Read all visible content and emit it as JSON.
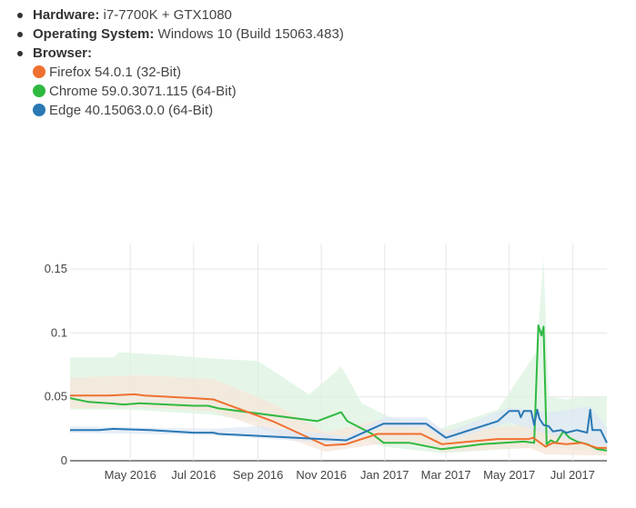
{
  "specs": {
    "hardware_label": "Hardware:",
    "hardware_value": "i7-7700K + GTX1080",
    "os_label": "Operating System:",
    "os_value": "Windows 10 (Build 15063.483)",
    "browser_label": "Browser:",
    "browsers": [
      {
        "name": "Firefox 54.0.1 (32-Bit)",
        "color": "#f07030"
      },
      {
        "name": "Chrome 59.0.3071.115 (64-Bit)",
        "color": "#2fb940"
      },
      {
        "name": "Edge 40.15063.0.0 (64-Bit)",
        "color": "#2a78b4"
      }
    ]
  },
  "chart_data": {
    "type": "line",
    "x_domain": [
      "2016-03-04",
      "2017-08-03"
    ],
    "ylim": [
      0,
      0.17
    ],
    "y_ticks": [
      0,
      0.05,
      0.1,
      0.15
    ],
    "y_tick_labels": [
      "0",
      "0.05",
      "0.1",
      "0.15"
    ],
    "x_ticks": [
      "2016-05-01",
      "2016-07-01",
      "2016-09-01",
      "2016-11-01",
      "2017-01-01",
      "2017-03-01",
      "2017-05-01",
      "2017-07-01"
    ],
    "x_tick_labels": [
      "May 2016",
      "Jul 2016",
      "Sep 2016",
      "Nov 2016",
      "Jan 2017",
      "Mar 2017",
      "May 2017",
      "Jul 2017"
    ],
    "grid": true,
    "series": [
      {
        "color": "#2fb940",
        "band_color": "#dcf3e0",
        "points": [
          [
            "2016-03-04",
            0.049
          ],
          [
            "2016-03-22",
            0.046
          ],
          [
            "2016-04-10",
            0.045
          ],
          [
            "2016-04-25",
            0.044
          ],
          [
            "2016-05-10",
            0.045
          ],
          [
            "2016-07-01",
            0.043
          ],
          [
            "2016-07-15",
            0.043
          ],
          [
            "2016-07-25",
            0.041
          ],
          [
            "2016-10-28",
            0.031
          ],
          [
            "2016-11-20",
            0.038
          ],
          [
            "2016-11-26",
            0.031
          ],
          [
            "2016-12-20",
            0.021
          ],
          [
            "2016-12-31",
            0.014
          ],
          [
            "2017-01-25",
            0.014
          ],
          [
            "2017-02-25",
            0.009
          ],
          [
            "2017-04-05",
            0.013
          ],
          [
            "2017-05-15",
            0.015
          ],
          [
            "2017-05-25",
            0.014
          ],
          [
            "2017-05-29",
            0.106
          ],
          [
            "2017-06-01",
            0.098
          ],
          [
            "2017-06-03",
            0.105
          ],
          [
            "2017-06-06",
            0.013
          ],
          [
            "2017-06-10",
            0.016
          ],
          [
            "2017-06-15",
            0.014
          ],
          [
            "2017-06-22",
            0.023
          ],
          [
            "2017-06-28",
            0.018
          ],
          [
            "2017-07-05",
            0.015
          ],
          [
            "2017-07-15",
            0.013
          ],
          [
            "2017-07-25",
            0.009
          ],
          [
            "2017-08-03",
            0.008
          ]
        ],
        "band_upper": [
          [
            "2016-03-04",
            0.081
          ],
          [
            "2016-04-15",
            0.081
          ],
          [
            "2016-04-20",
            0.085
          ],
          [
            "2016-05-10",
            0.084
          ],
          [
            "2016-06-01",
            0.083
          ],
          [
            "2016-07-20",
            0.08
          ],
          [
            "2016-09-01",
            0.078
          ],
          [
            "2016-10-20",
            0.052
          ],
          [
            "2016-11-10",
            0.066
          ],
          [
            "2016-11-20",
            0.074
          ],
          [
            "2016-12-10",
            0.045
          ],
          [
            "2017-01-01",
            0.036
          ],
          [
            "2017-02-15",
            0.023
          ],
          [
            "2017-04-20",
            0.04
          ],
          [
            "2017-05-27",
            0.085
          ],
          [
            "2017-06-03",
            0.158
          ],
          [
            "2017-06-08",
            0.05
          ],
          [
            "2017-06-25",
            0.048
          ],
          [
            "2017-07-10",
            0.05
          ],
          [
            "2017-08-03",
            0.05
          ]
        ],
        "band_lower": [
          [
            "2016-03-04",
            0.04
          ],
          [
            "2016-05-01",
            0.04
          ],
          [
            "2016-07-20",
            0.036
          ],
          [
            "2016-10-28",
            0.022
          ],
          [
            "2016-12-10",
            0.016
          ],
          [
            "2017-01-01",
            0.011
          ],
          [
            "2017-02-25",
            0.006
          ],
          [
            "2017-05-20",
            0.01
          ],
          [
            "2017-06-20",
            0.01
          ],
          [
            "2017-08-03",
            0.006
          ]
        ]
      },
      {
        "color": "#f07030",
        "band_color": "#f6e6da",
        "points": [
          [
            "2016-03-04",
            0.051
          ],
          [
            "2016-04-10",
            0.051
          ],
          [
            "2016-05-05",
            0.052
          ],
          [
            "2016-05-15",
            0.051
          ],
          [
            "2016-07-01",
            0.049
          ],
          [
            "2016-07-20",
            0.048
          ],
          [
            "2016-09-15",
            0.031
          ],
          [
            "2016-11-05",
            0.012
          ],
          [
            "2016-11-25",
            0.013
          ],
          [
            "2016-12-25",
            0.021
          ],
          [
            "2017-02-05",
            0.021
          ],
          [
            "2017-02-25",
            0.013
          ],
          [
            "2017-04-20",
            0.017
          ],
          [
            "2017-05-20",
            0.017
          ],
          [
            "2017-05-24",
            0.018
          ],
          [
            "2017-06-05",
            0.011
          ],
          [
            "2017-06-12",
            0.014
          ],
          [
            "2017-06-25",
            0.013
          ],
          [
            "2017-07-10",
            0.014
          ],
          [
            "2017-07-25",
            0.01
          ],
          [
            "2017-08-03",
            0.01
          ]
        ],
        "band_upper": [
          [
            "2016-03-04",
            0.065
          ],
          [
            "2016-05-10",
            0.067
          ],
          [
            "2016-07-20",
            0.064
          ],
          [
            "2016-09-15",
            0.045
          ],
          [
            "2016-11-05",
            0.022
          ],
          [
            "2016-12-25",
            0.032
          ],
          [
            "2017-02-05",
            0.031
          ],
          [
            "2017-02-25",
            0.024
          ],
          [
            "2017-05-20",
            0.028
          ],
          [
            "2017-06-05",
            0.024
          ],
          [
            "2017-08-03",
            0.02
          ]
        ],
        "band_lower": [
          [
            "2016-03-04",
            0.041
          ],
          [
            "2016-05-10",
            0.042
          ],
          [
            "2016-07-20",
            0.039
          ],
          [
            "2016-09-15",
            0.022
          ],
          [
            "2016-11-05",
            0.007
          ],
          [
            "2016-12-25",
            0.013
          ],
          [
            "2017-02-05",
            0.013
          ],
          [
            "2017-02-25",
            0.007
          ],
          [
            "2017-05-20",
            0.01
          ],
          [
            "2017-06-05",
            0.005
          ],
          [
            "2017-08-03",
            0.004
          ]
        ]
      },
      {
        "color": "#2a78b4",
        "band_color": "#dde8f4",
        "points": [
          [
            "2016-03-04",
            0.024
          ],
          [
            "2016-04-01",
            0.024
          ],
          [
            "2016-04-15",
            0.025
          ],
          [
            "2016-05-20",
            0.024
          ],
          [
            "2016-07-01",
            0.022
          ],
          [
            "2016-07-20",
            0.022
          ],
          [
            "2016-07-25",
            0.021
          ],
          [
            "2016-11-01",
            0.017
          ],
          [
            "2016-11-25",
            0.016
          ],
          [
            "2016-12-31",
            0.029
          ],
          [
            "2017-02-10",
            0.029
          ],
          [
            "2017-03-01",
            0.018
          ],
          [
            "2017-04-20",
            0.031
          ],
          [
            "2017-05-01",
            0.039
          ],
          [
            "2017-05-10",
            0.039
          ],
          [
            "2017-05-12",
            0.034
          ],
          [
            "2017-05-15",
            0.039
          ],
          [
            "2017-05-22",
            0.039
          ],
          [
            "2017-05-25",
            0.028
          ],
          [
            "2017-05-28",
            0.04
          ],
          [
            "2017-05-30",
            0.033
          ],
          [
            "2017-06-03",
            0.028
          ],
          [
            "2017-06-08",
            0.027
          ],
          [
            "2017-06-12",
            0.023
          ],
          [
            "2017-06-20",
            0.024
          ],
          [
            "2017-06-25",
            0.022
          ],
          [
            "2017-07-05",
            0.024
          ],
          [
            "2017-07-15",
            0.022
          ],
          [
            "2017-07-18",
            0.04
          ],
          [
            "2017-07-20",
            0.024
          ],
          [
            "2017-07-28",
            0.024
          ],
          [
            "2017-08-03",
            0.014
          ]
        ],
        "band_upper": [
          [
            "2016-03-04",
            0.027
          ],
          [
            "2016-07-20",
            0.025
          ],
          [
            "2016-09-01",
            0.027
          ],
          [
            "2016-11-25",
            0.019
          ],
          [
            "2016-12-31",
            0.034
          ],
          [
            "2017-02-10",
            0.034
          ],
          [
            "2017-03-01",
            0.022
          ],
          [
            "2017-05-01",
            0.042
          ],
          [
            "2017-06-10",
            0.038
          ],
          [
            "2017-07-18",
            0.043
          ],
          [
            "2017-08-03",
            0.026
          ]
        ],
        "band_lower": [
          [
            "2016-03-04",
            0.022
          ],
          [
            "2016-07-20",
            0.02
          ],
          [
            "2016-11-25",
            0.013
          ],
          [
            "2016-12-31",
            0.026
          ],
          [
            "2017-02-10",
            0.026
          ],
          [
            "2017-03-01",
            0.015
          ],
          [
            "2017-05-01",
            0.03
          ],
          [
            "2017-06-10",
            0.02
          ],
          [
            "2017-08-03",
            0.01
          ]
        ]
      }
    ]
  }
}
